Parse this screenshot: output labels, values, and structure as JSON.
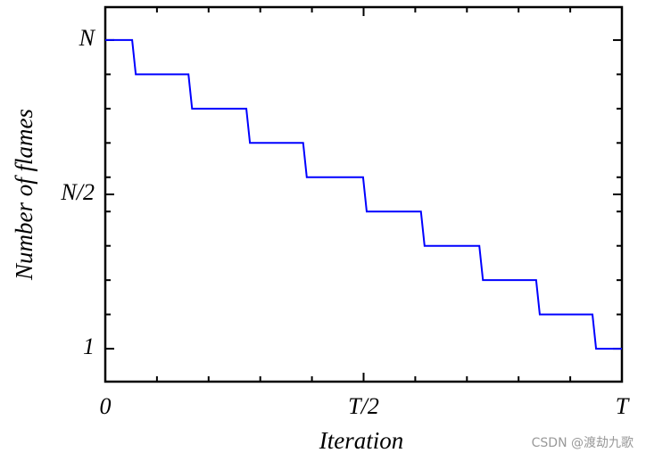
{
  "chart_data": {
    "type": "line",
    "x_label": "Iteration",
    "y_label": "Number of flames",
    "x": [
      0,
      0.052,
      0.059,
      0.161,
      0.168,
      0.273,
      0.28,
      0.383,
      0.39,
      0.499,
      0.506,
      0.611,
      0.618,
      0.724,
      0.731,
      0.834,
      0.841,
      0.943,
      0.95,
      1
    ],
    "values": [
      10,
      10,
      9,
      9,
      8,
      8,
      7,
      7,
      6,
      6,
      5,
      5,
      4,
      4,
      3,
      3,
      2,
      2,
      1,
      1
    ],
    "color": "#0000ff",
    "xlim": [
      0,
      1
    ],
    "xticks": [
      0,
      {
        "value": 0.5,
        "label": "T/2"
      },
      {
        "value": 1,
        "label": "T"
      }
    ],
    "xminor": [
      0.1,
      0.2,
      0.3,
      0.4,
      0.6,
      0.7,
      0.8,
      0.9
    ],
    "ylim": [
      0.04,
      10.96
    ],
    "yticks": [
      1,
      {
        "value": 5.5,
        "label": "N/2"
      },
      {
        "value": 10,
        "label": "N"
      }
    ],
    "yminor": [
      2,
      3,
      4,
      5,
      6,
      7,
      8,
      9
    ],
    "watermark": "CSDN @渡劫九歌"
  }
}
